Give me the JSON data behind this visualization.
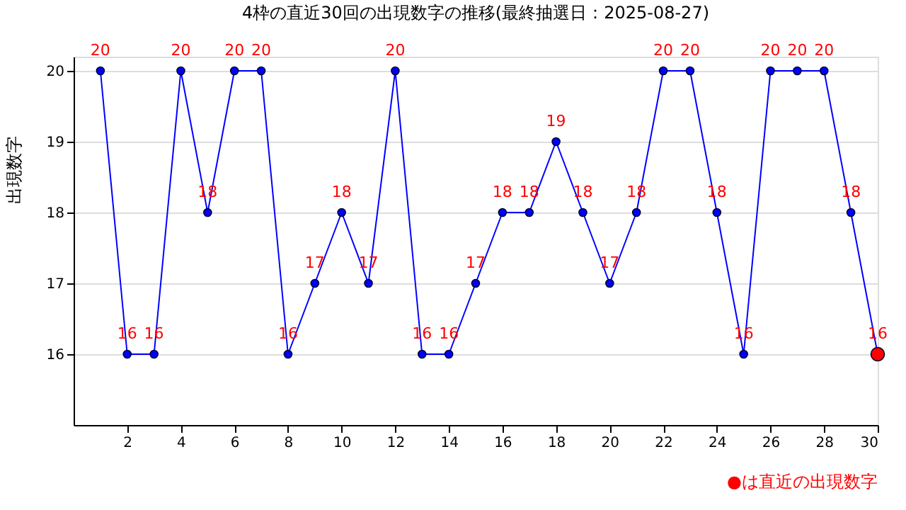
{
  "chart_data": {
    "type": "line",
    "title": "4枠の直近30回の出現数字の推移(最終抽選日：2025-08-27)",
    "ylabel": "出現数字",
    "x": [
      1,
      2,
      3,
      4,
      5,
      6,
      7,
      8,
      9,
      10,
      11,
      12,
      13,
      14,
      15,
      16,
      17,
      18,
      19,
      20,
      21,
      22,
      23,
      24,
      25,
      26,
      27,
      28,
      29,
      30
    ],
    "series": [
      {
        "color": "#0000ff",
        "colors": [
          "#0000ff",
          "#0000ff",
          "#0000ff",
          "#0000ff",
          "#0000ff",
          "#0000ff",
          "#0000ff",
          "#0000ff",
          "#0000ff",
          "#0000ff",
          "#0000ff",
          "#0000ff",
          "#0000ff",
          "#0000ff",
          "#0000ff",
          "#0000ff",
          "#0000ff",
          "#0000ff",
          "#0000ff",
          "#0000ff",
          "#0000ff",
          "#0000ff",
          "#0000ff",
          "#0000ff",
          "#0000ff",
          "#0000ff",
          "#0000ff",
          "#0000ff",
          "#0000ff",
          "#ff0000"
        ],
        "values": [
          20,
          16,
          16,
          20,
          18,
          20,
          20,
          16,
          17,
          18,
          17,
          20,
          16,
          16,
          17,
          18,
          18,
          19,
          18,
          17,
          18,
          20,
          20,
          18,
          16,
          20,
          20,
          20,
          18,
          16
        ]
      }
    ],
    "xlim": [
      0,
      30
    ],
    "xticks": [
      2,
      4,
      6,
      8,
      10,
      12,
      14,
      16,
      18,
      20,
      22,
      24,
      26,
      28,
      30
    ],
    "ylim": [
      15,
      20.2
    ],
    "yticks": [
      16,
      17,
      18,
      19,
      20
    ],
    "grid": "y",
    "marker": "circle",
    "data_labels": true,
    "annotations": [
      "●は直近の出現数字"
    ]
  }
}
